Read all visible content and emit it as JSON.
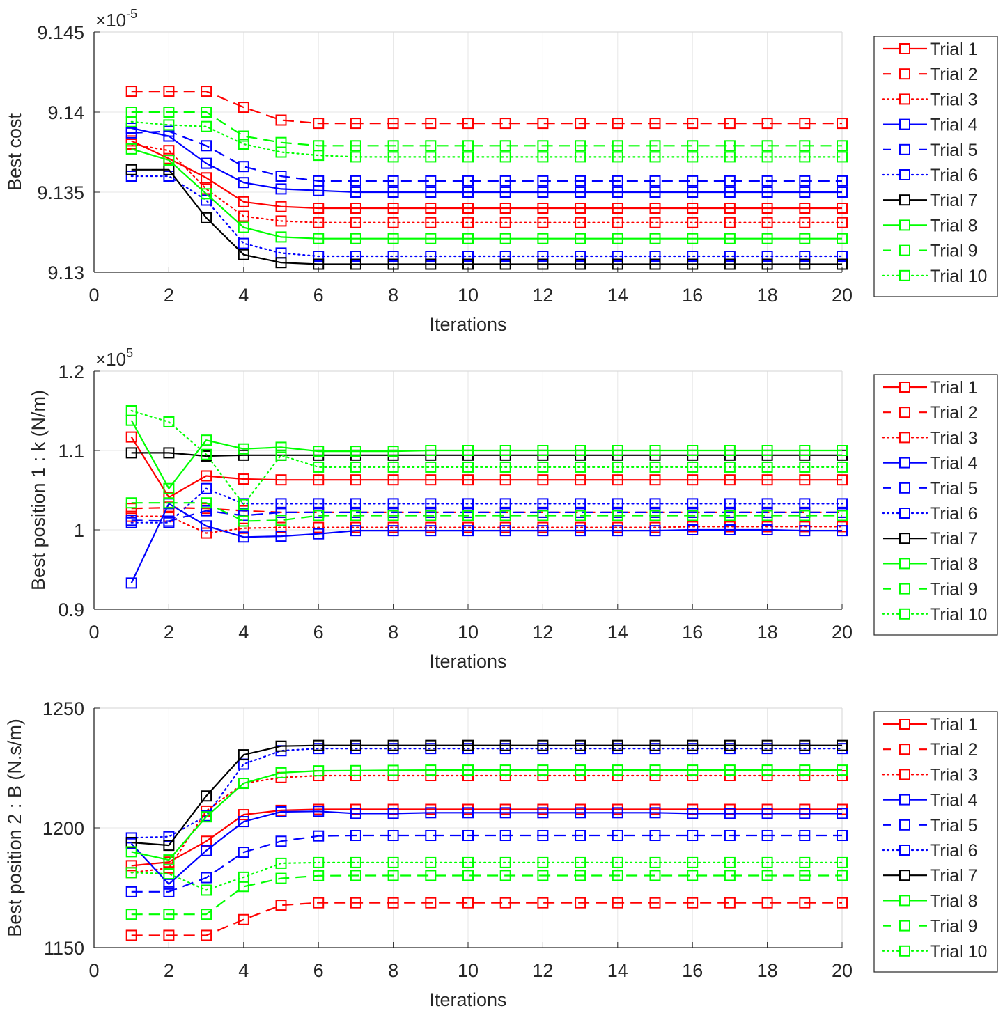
{
  "figure": {
    "line_styles": {
      "solid": "solid",
      "dashed": "dashed",
      "dotted": "dotted"
    },
    "colors": {
      "red": "#ff0000",
      "blue": "#0000ff",
      "black": "#000000",
      "green": "#00ff00",
      "axis": "#262626",
      "grid": "#e6e6e6"
    }
  },
  "chart_data": [
    {
      "type": "line",
      "title": "",
      "xlabel": "Iterations",
      "ylabel": "Best cost",
      "multiplier_label": "×10",
      "multiplier_exponent": "-5",
      "xlim": [
        0,
        20
      ],
      "ylim": [
        9.13,
        9.145
      ],
      "xticks": [
        0,
        2,
        4,
        6,
        8,
        10,
        12,
        14,
        16,
        18,
        20
      ],
      "xtick_labels": [
        "0",
        "2",
        "4",
        "6",
        "8",
        "10",
        "12",
        "14",
        "16",
        "18",
        "20"
      ],
      "yticks": [
        9.13,
        9.135,
        9.14,
        9.145
      ],
      "ytick_labels": [
        "9.13",
        "9.135",
        "9.14",
        "9.145"
      ],
      "grid": true,
      "legend_position": "outside-right",
      "marker": "square",
      "x": [
        1,
        2,
        3,
        4,
        5,
        6,
        7,
        8,
        9,
        10,
        11,
        12,
        13,
        14,
        15,
        16,
        17,
        18,
        19,
        20
      ],
      "series": [
        {
          "name": "Trial 1",
          "color": "#ff0000",
          "style": "solid",
          "values": [
            9.1382,
            9.1371,
            9.1359,
            9.1344,
            9.1341,
            9.134,
            9.134,
            9.134,
            9.134,
            9.134,
            9.134,
            9.134,
            9.134,
            9.134,
            9.134,
            9.134,
            9.134,
            9.134,
            9.134,
            9.134
          ]
        },
        {
          "name": "Trial 2",
          "color": "#ff0000",
          "style": "dashed",
          "values": [
            9.1413,
            9.1413,
            9.1413,
            9.1403,
            9.1395,
            9.1393,
            9.1393,
            9.1393,
            9.1393,
            9.1393,
            9.1393,
            9.1393,
            9.1393,
            9.1393,
            9.1393,
            9.1393,
            9.1393,
            9.1393,
            9.1393,
            9.1393
          ]
        },
        {
          "name": "Trial 3",
          "color": "#ff0000",
          "style": "dotted",
          "values": [
            9.138,
            9.1376,
            9.1352,
            9.1335,
            9.1332,
            9.1331,
            9.1331,
            9.1331,
            9.1331,
            9.1331,
            9.1331,
            9.1331,
            9.1331,
            9.1331,
            9.1331,
            9.1331,
            9.1331,
            9.1331,
            9.1331,
            9.1331
          ]
        },
        {
          "name": "Trial 4",
          "color": "#0000ff",
          "style": "solid",
          "values": [
            9.139,
            9.1385,
            9.1368,
            9.1356,
            9.1352,
            9.1351,
            9.135,
            9.135,
            9.135,
            9.135,
            9.135,
            9.135,
            9.135,
            9.135,
            9.135,
            9.135,
            9.135,
            9.135,
            9.135,
            9.135
          ]
        },
        {
          "name": "Trial 5",
          "color": "#0000ff",
          "style": "dashed",
          "values": [
            9.1387,
            9.1388,
            9.1379,
            9.1366,
            9.136,
            9.1357,
            9.1357,
            9.1357,
            9.1357,
            9.1357,
            9.1357,
            9.1357,
            9.1357,
            9.1357,
            9.1357,
            9.1357,
            9.1357,
            9.1357,
            9.1357,
            9.1357
          ]
        },
        {
          "name": "Trial 6",
          "color": "#0000ff",
          "style": "dotted",
          "values": [
            9.136,
            9.136,
            9.1345,
            9.1318,
            9.1312,
            9.131,
            9.131,
            9.131,
            9.131,
            9.131,
            9.131,
            9.131,
            9.131,
            9.131,
            9.131,
            9.131,
            9.131,
            9.131,
            9.131,
            9.131
          ]
        },
        {
          "name": "Trial 7",
          "color": "#000000",
          "style": "solid",
          "values": [
            9.1364,
            9.1364,
            9.1334,
            9.1311,
            9.1306,
            9.1305,
            9.1305,
            9.1305,
            9.1305,
            9.1305,
            9.1305,
            9.1305,
            9.1305,
            9.1305,
            9.1305,
            9.1305,
            9.1305,
            9.1305,
            9.1305,
            9.1305
          ]
        },
        {
          "name": "Trial 8",
          "color": "#00ff00",
          "style": "solid",
          "values": [
            9.1377,
            9.137,
            9.1349,
            9.1328,
            9.1322,
            9.1321,
            9.1321,
            9.1321,
            9.1321,
            9.1321,
            9.1321,
            9.1321,
            9.1321,
            9.1321,
            9.1321,
            9.1321,
            9.1321,
            9.1321,
            9.1321,
            9.1321
          ]
        },
        {
          "name": "Trial 9",
          "color": "#00ff00",
          "style": "dashed",
          "values": [
            9.14,
            9.14,
            9.14,
            9.1385,
            9.1381,
            9.1379,
            9.1379,
            9.1379,
            9.1379,
            9.1379,
            9.1379,
            9.1379,
            9.1379,
            9.1379,
            9.1379,
            9.1379,
            9.1379,
            9.1379,
            9.1379,
            9.1379
          ]
        },
        {
          "name": "Trial 10",
          "color": "#00ff00",
          "style": "dotted",
          "values": [
            9.1394,
            9.1392,
            9.1391,
            9.138,
            9.1375,
            9.1373,
            9.1372,
            9.1372,
            9.1372,
            9.1372,
            9.1372,
            9.1372,
            9.1372,
            9.1372,
            9.1372,
            9.1372,
            9.1372,
            9.1372,
            9.1372,
            9.1372
          ]
        }
      ]
    },
    {
      "type": "line",
      "title": "",
      "xlabel": "Iterations",
      "ylabel": "Best position 1 : k (N/m)",
      "multiplier_label": "×10",
      "multiplier_exponent": "5",
      "xlim": [
        0,
        20
      ],
      "ylim": [
        0.9,
        1.2
      ],
      "xticks": [
        0,
        2,
        4,
        6,
        8,
        10,
        12,
        14,
        16,
        18,
        20
      ],
      "xtick_labels": [
        "0",
        "2",
        "4",
        "6",
        "8",
        "10",
        "12",
        "14",
        "16",
        "18",
        "20"
      ],
      "yticks": [
        0.9,
        1.0,
        1.1,
        1.2
      ],
      "ytick_labels": [
        "0.9",
        "1",
        "1.1",
        "1.2"
      ],
      "grid": true,
      "legend_position": "outside-right",
      "marker": "square",
      "x": [
        1,
        2,
        3,
        4,
        5,
        6,
        7,
        8,
        9,
        10,
        11,
        12,
        13,
        14,
        15,
        16,
        17,
        18,
        19,
        20
      ],
      "series": [
        {
          "name": "Trial 1",
          "color": "#ff0000",
          "style": "solid",
          "values": [
            1.117,
            1.041,
            1.068,
            1.064,
            1.063,
            1.063,
            1.063,
            1.063,
            1.063,
            1.063,
            1.063,
            1.063,
            1.063,
            1.063,
            1.063,
            1.063,
            1.063,
            1.063,
            1.063,
            1.063
          ]
        },
        {
          "name": "Trial 2",
          "color": "#ff0000",
          "style": "dashed",
          "values": [
            1.027,
            1.028,
            1.027,
            1.024,
            1.022,
            1.022,
            1.022,
            1.022,
            1.022,
            1.022,
            1.022,
            1.022,
            1.022,
            1.022,
            1.022,
            1.022,
            1.022,
            1.022,
            1.022,
            1.022
          ]
        },
        {
          "name": "Trial 3",
          "color": "#ff0000",
          "style": "dotted",
          "values": [
            1.017,
            1.017,
            0.996,
            1.002,
            1.003,
            1.003,
            1.003,
            1.003,
            1.003,
            1.003,
            1.003,
            1.003,
            1.003,
            1.003,
            1.003,
            1.004,
            1.004,
            1.004,
            1.004,
            1.004
          ]
        },
        {
          "name": "Trial 4",
          "color": "#0000ff",
          "style": "solid",
          "values": [
            0.933,
            1.033,
            1.005,
            0.991,
            0.992,
            0.995,
            0.999,
            0.999,
            0.999,
            0.999,
            0.999,
            0.999,
            0.999,
            0.999,
            0.999,
            1.0,
            1.0,
            1.0,
            0.999,
            0.999
          ]
        },
        {
          "name": "Trial 5",
          "color": "#0000ff",
          "style": "dashed",
          "values": [
            1.012,
            1.011,
            1.024,
            1.018,
            1.022,
            1.022,
            1.022,
            1.022,
            1.022,
            1.022,
            1.022,
            1.022,
            1.022,
            1.022,
            1.022,
            1.022,
            1.022,
            1.022,
            1.022,
            1.022
          ]
        },
        {
          "name": "Trial 6",
          "color": "#0000ff",
          "style": "dotted",
          "values": [
            1.009,
            1.009,
            1.052,
            1.033,
            1.033,
            1.033,
            1.033,
            1.033,
            1.033,
            1.033,
            1.033,
            1.033,
            1.033,
            1.033,
            1.033,
            1.033,
            1.033,
            1.033,
            1.033,
            1.033
          ]
        },
        {
          "name": "Trial 7",
          "color": "#000000",
          "style": "solid",
          "values": [
            1.097,
            1.097,
            1.093,
            1.094,
            1.094,
            1.094,
            1.094,
            1.094,
            1.094,
            1.094,
            1.094,
            1.094,
            1.094,
            1.094,
            1.094,
            1.094,
            1.094,
            1.094,
            1.094,
            1.094
          ]
        },
        {
          "name": "Trial 8",
          "color": "#00ff00",
          "style": "solid",
          "values": [
            1.138,
            1.052,
            1.113,
            1.102,
            1.104,
            1.099,
            1.099,
            1.099,
            1.1,
            1.1,
            1.1,
            1.1,
            1.1,
            1.1,
            1.1,
            1.1,
            1.1,
            1.1,
            1.1,
            1.1
          ]
        },
        {
          "name": "Trial 9",
          "color": "#00ff00",
          "style": "dashed",
          "values": [
            1.034,
            1.034,
            1.034,
            1.011,
            1.012,
            1.018,
            1.018,
            1.018,
            1.018,
            1.018,
            1.018,
            1.018,
            1.018,
            1.018,
            1.018,
            1.018,
            1.018,
            1.018,
            1.018,
            1.018
          ]
        },
        {
          "name": "Trial 10",
          "color": "#00ff00",
          "style": "dotted",
          "values": [
            1.15,
            1.136,
            1.095,
            1.032,
            1.094,
            1.079,
            1.079,
            1.079,
            1.079,
            1.079,
            1.079,
            1.079,
            1.079,
            1.079,
            1.079,
            1.079,
            1.079,
            1.079,
            1.079,
            1.079
          ]
        }
      ]
    },
    {
      "type": "line",
      "title": "",
      "xlabel": "Iterations",
      "ylabel": "Best position 2 : B (N.s/m)",
      "multiplier_label": "",
      "multiplier_exponent": "",
      "xlim": [
        0,
        20
      ],
      "ylim": [
        1150,
        1250
      ],
      "xticks": [
        0,
        2,
        4,
        6,
        8,
        10,
        12,
        14,
        16,
        18,
        20
      ],
      "xtick_labels": [
        "0",
        "2",
        "4",
        "6",
        "8",
        "10",
        "12",
        "14",
        "16",
        "18",
        "20"
      ],
      "yticks": [
        1150,
        1200,
        1250
      ],
      "ytick_labels": [
        "1150",
        "1200",
        "1250"
      ],
      "grid": true,
      "legend_position": "outside-right",
      "marker": "square",
      "x": [
        1,
        2,
        3,
        4,
        5,
        6,
        7,
        8,
        9,
        10,
        11,
        12,
        13,
        14,
        15,
        16,
        17,
        18,
        19,
        20
      ],
      "series": [
        {
          "name": "Trial 1",
          "color": "#ff0000",
          "style": "solid",
          "values": [
            1184.2,
            1185.7,
            1194.4,
            1205.5,
            1207.3,
            1207.7,
            1207.7,
            1207.7,
            1207.7,
            1207.7,
            1207.7,
            1207.7,
            1207.7,
            1207.7,
            1207.7,
            1207.7,
            1207.7,
            1207.7,
            1207.7,
            1207.7
          ]
        },
        {
          "name": "Trial 2",
          "color": "#ff0000",
          "style": "dashed",
          "values": [
            1155.1,
            1155.1,
            1155.1,
            1161.7,
            1167.7,
            1168.7,
            1168.7,
            1168.7,
            1168.7,
            1168.7,
            1168.7,
            1168.7,
            1168.7,
            1168.7,
            1168.7,
            1168.7,
            1168.7,
            1168.7,
            1168.7,
            1168.7
          ]
        },
        {
          "name": "Trial 3",
          "color": "#ff0000",
          "style": "dotted",
          "values": [
            1181.3,
            1183.2,
            1207.0,
            1218.6,
            1221.0,
            1221.8,
            1221.8,
            1221.8,
            1221.8,
            1221.8,
            1221.8,
            1221.8,
            1221.8,
            1221.8,
            1221.8,
            1221.8,
            1221.8,
            1221.8,
            1221.8,
            1221.8
          ]
        },
        {
          "name": "Trial 4",
          "color": "#0000ff",
          "style": "solid",
          "values": [
            1193.4,
            1176.5,
            1190.5,
            1202.6,
            1206.7,
            1206.9,
            1206.0,
            1206.0,
            1206.3,
            1206.3,
            1206.3,
            1206.3,
            1206.3,
            1206.3,
            1206.3,
            1206.0,
            1206.0,
            1206.0,
            1206.0,
            1206.0
          ]
        },
        {
          "name": "Trial 5",
          "color": "#0000ff",
          "style": "dashed",
          "values": [
            1173.3,
            1173.3,
            1179.2,
            1189.8,
            1194.4,
            1196.6,
            1196.8,
            1196.8,
            1196.8,
            1196.8,
            1196.8,
            1196.8,
            1196.8,
            1196.8,
            1196.8,
            1196.8,
            1196.8,
            1196.8,
            1196.8,
            1196.8
          ]
        },
        {
          "name": "Trial 6",
          "color": "#0000ff",
          "style": "dotted",
          "values": [
            1195.8,
            1196.3,
            1205.0,
            1226.6,
            1232.2,
            1233.1,
            1233.1,
            1233.1,
            1233.1,
            1233.1,
            1233.1,
            1233.1,
            1233.1,
            1233.1,
            1233.1,
            1233.1,
            1233.1,
            1233.1,
            1233.1,
            1233.1
          ]
        },
        {
          "name": "Trial 7",
          "color": "#000000",
          "style": "solid",
          "values": [
            1193.9,
            1192.7,
            1213.3,
            1230.5,
            1234.1,
            1234.4,
            1234.4,
            1234.4,
            1234.4,
            1234.4,
            1234.4,
            1234.4,
            1234.4,
            1234.4,
            1234.4,
            1234.4,
            1234.4,
            1234.4,
            1234.4,
            1234.4
          ]
        },
        {
          "name": "Trial 8",
          "color": "#00ff00",
          "style": "solid",
          "values": [
            1190.0,
            1186.6,
            1204.6,
            1218.6,
            1223.0,
            1223.8,
            1223.9,
            1224.0,
            1224.1,
            1224.1,
            1224.1,
            1224.1,
            1224.1,
            1224.1,
            1224.1,
            1224.1,
            1224.1,
            1224.1,
            1224.1,
            1224.1
          ]
        },
        {
          "name": "Trial 9",
          "color": "#00ff00",
          "style": "dashed",
          "values": [
            1163.9,
            1163.9,
            1163.9,
            1175.5,
            1178.9,
            1180.0,
            1180.1,
            1180.1,
            1180.1,
            1180.1,
            1180.1,
            1180.1,
            1180.1,
            1180.1,
            1180.1,
            1180.1,
            1180.1,
            1180.1,
            1180.1,
            1180.1
          ]
        },
        {
          "name": "Trial 10",
          "color": "#00ff00",
          "style": "dotted",
          "values": [
            1181.3,
            1180.8,
            1174.0,
            1179.4,
            1185.2,
            1185.5,
            1185.5,
            1185.5,
            1185.5,
            1185.5,
            1185.5,
            1185.5,
            1185.5,
            1185.5,
            1185.5,
            1185.5,
            1185.5,
            1185.5,
            1185.5,
            1185.5
          ]
        }
      ]
    }
  ]
}
